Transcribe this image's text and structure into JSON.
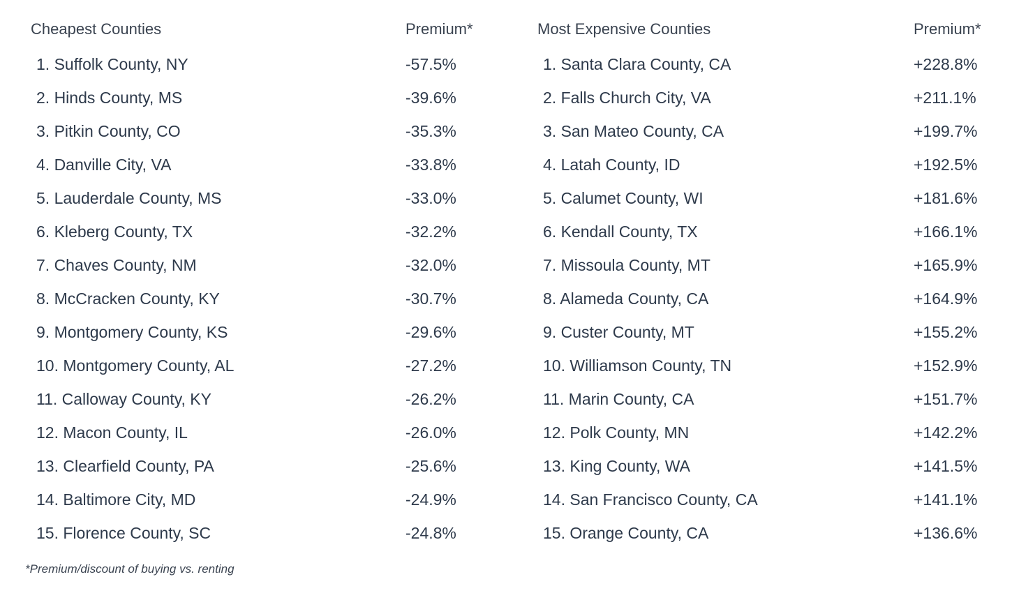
{
  "cheapest": {
    "header": "Cheapest Counties",
    "premium_header": "Premium*",
    "rows": [
      {
        "name": "1. Suffolk County, NY",
        "premium": "-57.5%"
      },
      {
        "name": "2. Hinds County, MS",
        "premium": "-39.6%"
      },
      {
        "name": "3. Pitkin County, CO",
        "premium": "-35.3%"
      },
      {
        "name": "4. Danville City, VA",
        "premium": "-33.8%"
      },
      {
        "name": "5. Lauderdale County, MS",
        "premium": "-33.0%"
      },
      {
        "name": "6. Kleberg County, TX",
        "premium": "-32.2%"
      },
      {
        "name": "7. Chaves County, NM",
        "premium": "-32.0%"
      },
      {
        "name": "8. McCracken County, KY",
        "premium": "-30.7%"
      },
      {
        "name": "9. Montgomery County, KS",
        "premium": "-29.6%"
      },
      {
        "name": "10. Montgomery County, AL",
        "premium": "-27.2%"
      },
      {
        "name": "11. Calloway County, KY",
        "premium": "-26.2%"
      },
      {
        "name": "12. Macon County, IL",
        "premium": "-26.0%"
      },
      {
        "name": "13. Clearfield County, PA",
        "premium": "-25.6%"
      },
      {
        "name": "14. Baltimore City, MD",
        "premium": "-24.9%"
      },
      {
        "name": "15. Florence County, SC",
        "premium": "-24.8%"
      }
    ]
  },
  "expensive": {
    "header": "Most Expensive Counties",
    "premium_header": "Premium*",
    "rows": [
      {
        "name": "1. Santa Clara County, CA",
        "premium": "+228.8%"
      },
      {
        "name": "2. Falls Church City, VA",
        "premium": "+211.1%"
      },
      {
        "name": "3. San Mateo County, CA",
        "premium": "+199.7%"
      },
      {
        "name": "4. Latah County, ID",
        "premium": "+192.5%"
      },
      {
        "name": "5. Calumet County, WI",
        "premium": "+181.6%"
      },
      {
        "name": "6. Kendall County, TX",
        "premium": "+166.1%"
      },
      {
        "name": "7. Missoula County, MT",
        "premium": "+165.9%"
      },
      {
        "name": "8. Alameda County, CA",
        "premium": "+164.9%"
      },
      {
        "name": "9. Custer County, MT",
        "premium": "+155.2%"
      },
      {
        "name": "10. Williamson County, TN",
        "premium": "+152.9%"
      },
      {
        "name": "11. Marin County, CA",
        "premium": "+151.7%"
      },
      {
        "name": "12. Polk County, MN",
        "premium": "+142.2%"
      },
      {
        "name": "13. King County, WA",
        "premium": "+141.5%"
      },
      {
        "name": "14. San Francisco County, CA",
        "premium": "+141.1%"
      },
      {
        "name": "15. Orange County, CA",
        "premium": "+136.6%"
      }
    ]
  },
  "footnote": "*Premium/discount of buying vs. renting"
}
